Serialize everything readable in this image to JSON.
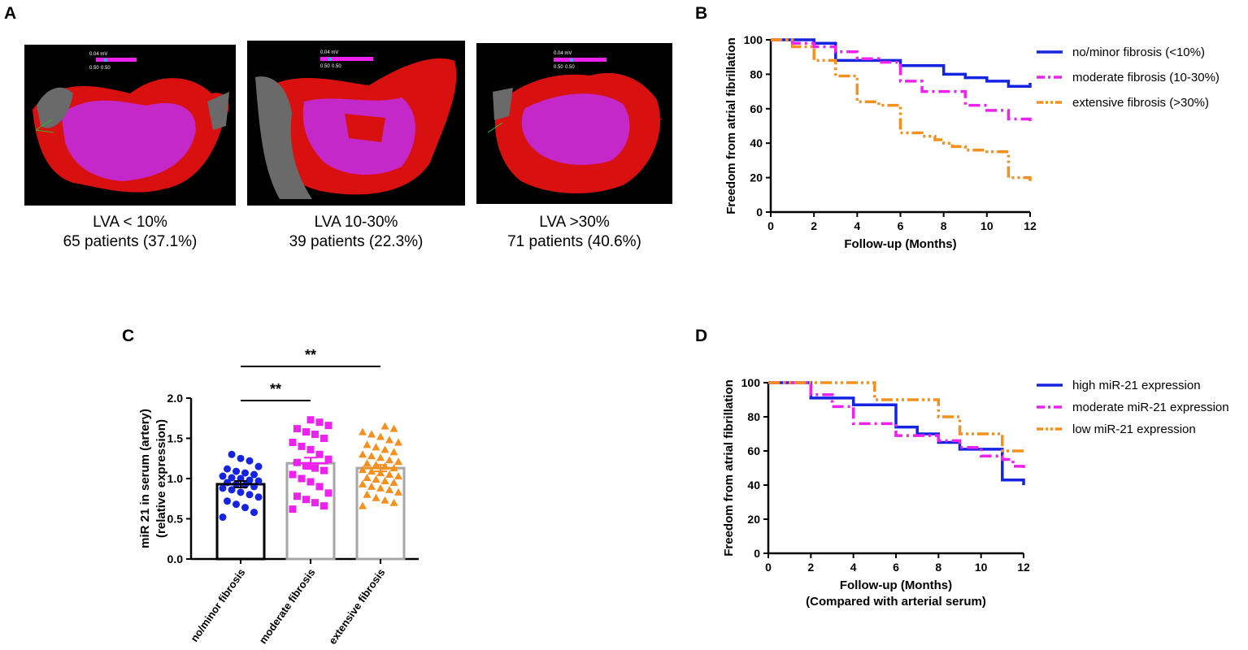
{
  "panels": {
    "a": "A",
    "b": "B",
    "c": "C",
    "d": "D"
  },
  "maps": [
    {
      "scale_value": "0.04 mV",
      "scale_min": "0.50",
      "scale_max": "0.50",
      "cap1": "LVA < 10%",
      "cap2": "65 patients (37.1%)"
    },
    {
      "scale_value": "0.04 mV",
      "scale_min": "0.50",
      "scale_max": "0.50",
      "cap1": "LVA 10-30%",
      "cap2": "39 patients (22.3%)"
    },
    {
      "scale_value": "0.04 mV",
      "scale_min": "0.50",
      "scale_max": "0.50",
      "cap1": "LVA >30%",
      "cap2": "71 patients (40.6%)"
    }
  ],
  "colors": {
    "blue": "#1424e0",
    "magenta": "#ee22ee",
    "orange": "#f5901e",
    "map_red": "#d81010",
    "map_magenta": "#c428c8",
    "map_grey": "#6a6a6a"
  },
  "chart_data": [
    {
      "id": "B",
      "type": "line",
      "xlabel": "Follow-up (Months)",
      "ylabel": "Freedom from atrial fibrillation",
      "xlim": [
        0,
        12
      ],
      "ylim": [
        0,
        100
      ],
      "xticks": [
        0,
        2,
        4,
        6,
        8,
        10,
        12
      ],
      "yticks": [
        0,
        20,
        40,
        60,
        80,
        100
      ],
      "legend_position": "right",
      "series": [
        {
          "name": "no/minor fibrosis (<10%)",
          "color": "#1424e0",
          "style": "solid",
          "points": [
            [
              0,
              100
            ],
            [
              2,
              100
            ],
            [
              2,
              98
            ],
            [
              3,
              98
            ],
            [
              3,
              88
            ],
            [
              6,
              88
            ],
            [
              6,
              85
            ],
            [
              8,
              85
            ],
            [
              8,
              80
            ],
            [
              9,
              80
            ],
            [
              9,
              78
            ],
            [
              10,
              78
            ],
            [
              10,
              76
            ],
            [
              11,
              76
            ],
            [
              11,
              73
            ],
            [
              12,
              73
            ],
            [
              12,
              75
            ]
          ]
        },
        {
          "name": "moderate fibrosis (10-30%)",
          "color": "#ee22ee",
          "style": "dashdot",
          "points": [
            [
              0,
              100
            ],
            [
              1,
              100
            ],
            [
              1,
              98
            ],
            [
              2,
              98
            ],
            [
              2,
              96
            ],
            [
              3,
              96
            ],
            [
              3,
              93
            ],
            [
              4,
              93
            ],
            [
              4,
              89
            ],
            [
              5,
              89
            ],
            [
              5,
              87
            ],
            [
              6,
              87
            ],
            [
              6,
              76
            ],
            [
              7,
              76
            ],
            [
              7,
              70
            ],
            [
              9,
              70
            ],
            [
              9,
              62
            ],
            [
              10,
              62
            ],
            [
              10,
              59
            ],
            [
              11,
              59
            ],
            [
              11,
              54
            ],
            [
              12,
              54
            ],
            [
              12,
              52
            ]
          ]
        },
        {
          "name": "extensive fibrosis (>30%)",
          "color": "#f5901e",
          "style": "dashdotdot",
          "points": [
            [
              0,
              100
            ],
            [
              1,
              100
            ],
            [
              1,
              96
            ],
            [
              2,
              96
            ],
            [
              2,
              88
            ],
            [
              3,
              88
            ],
            [
              3,
              79
            ],
            [
              4,
              79
            ],
            [
              4,
              64
            ],
            [
              5,
              64
            ],
            [
              5,
              62
            ],
            [
              6,
              62
            ],
            [
              6,
              46
            ],
            [
              7,
              46
            ],
            [
              7,
              44
            ],
            [
              7.6,
              44
            ],
            [
              7.6,
              42
            ],
            [
              8,
              42
            ],
            [
              8,
              40
            ],
            [
              8.4,
              40
            ],
            [
              8.4,
              38
            ],
            [
              9,
              38
            ],
            [
              9,
              36
            ],
            [
              10,
              36
            ],
            [
              10,
              35
            ],
            [
              11,
              35
            ],
            [
              11,
              20
            ],
            [
              12,
              20
            ],
            [
              12,
              18
            ]
          ]
        }
      ]
    },
    {
      "id": "C",
      "type": "bar",
      "ylabel": "miR 21 in serum (artery)",
      "ylabel2": "(relative expression)",
      "categories": [
        "no/minor fibrosis",
        "moderate fibrosis",
        "extensive fibrosis"
      ],
      "ylim": [
        0,
        2.0
      ],
      "yticks": [
        "0.0",
        "0.5",
        "1.0",
        "1.5",
        "2.0"
      ],
      "means": [
        0.93,
        1.19,
        1.13
      ],
      "sem": [
        0.04,
        0.07,
        0.04
      ],
      "bar_colors": [
        "#000000",
        "#a6a6a6",
        "#a6a6a6"
      ],
      "marker_colors": [
        "#1424e0",
        "#ee22ee",
        "#f5901e"
      ],
      "markers": [
        "circle",
        "square",
        "triangle"
      ],
      "points": [
        [
          0.52,
          0.58,
          0.64,
          0.68,
          0.72,
          0.77,
          0.8,
          0.83,
          0.86,
          0.88,
          0.9,
          0.92,
          0.93,
          0.95,
          0.97,
          0.98,
          1.0,
          1.01,
          1.03,
          1.05,
          1.07,
          1.09,
          1.12,
          1.15,
          1.22,
          1.25,
          1.3
        ],
        [
          0.62,
          0.66,
          0.7,
          0.74,
          0.78,
          0.82,
          0.9,
          0.96,
          1.0,
          1.05,
          1.1,
          1.13,
          1.16,
          1.2,
          1.24,
          1.3,
          1.36,
          1.4,
          1.45,
          1.5,
          1.55,
          1.58,
          1.62,
          1.66,
          1.7,
          1.73
        ],
        [
          0.66,
          0.7,
          0.73,
          0.76,
          0.8,
          0.83,
          0.86,
          0.88,
          0.9,
          0.93,
          0.95,
          0.97,
          0.99,
          1.01,
          1.03,
          1.05,
          1.07,
          1.09,
          1.11,
          1.13,
          1.15,
          1.17,
          1.19,
          1.21,
          1.23,
          1.26,
          1.28,
          1.3,
          1.33,
          1.36,
          1.39,
          1.42,
          1.45,
          1.48,
          1.52,
          1.55,
          1.58,
          1.62,
          1.65
        ]
      ],
      "significance": [
        {
          "from": 0,
          "to": 1,
          "label": "**"
        },
        {
          "from": 0,
          "to": 2,
          "label": "**"
        }
      ]
    },
    {
      "id": "D",
      "type": "line",
      "xlabel": "Follow-up (Months)",
      "xlabel2": "(Compared with arterial serum)",
      "ylabel": "Freedom from atrial fibrillation",
      "xlim": [
        0,
        12
      ],
      "ylim": [
        0,
        100
      ],
      "xticks": [
        0,
        2,
        4,
        6,
        8,
        10,
        12
      ],
      "yticks": [
        0,
        20,
        40,
        60,
        80,
        100
      ],
      "legend_position": "right",
      "series": [
        {
          "name": "high miR-21 expression",
          "color": "#1424e0",
          "style": "solid",
          "points": [
            [
              0,
              100
            ],
            [
              2,
              100
            ],
            [
              2,
              91
            ],
            [
              4,
              91
            ],
            [
              4,
              87
            ],
            [
              6,
              87
            ],
            [
              6,
              74
            ],
            [
              7,
              74
            ],
            [
              7,
              70
            ],
            [
              8,
              70
            ],
            [
              8,
              65
            ],
            [
              9,
              65
            ],
            [
              9,
              61
            ],
            [
              11,
              61
            ],
            [
              11,
              43
            ],
            [
              12,
              43
            ],
            [
              12,
              40
            ]
          ]
        },
        {
          "name": "moderate miR-21 expression",
          "color": "#ee22ee",
          "style": "dashdot",
          "points": [
            [
              0,
              100
            ],
            [
              2,
              100
            ],
            [
              2,
              93
            ],
            [
              3,
              93
            ],
            [
              3,
              86
            ],
            [
              4,
              86
            ],
            [
              4,
              76
            ],
            [
              6,
              76
            ],
            [
              6,
              69
            ],
            [
              8,
              69
            ],
            [
              8,
              66
            ],
            [
              9,
              66
            ],
            [
              9,
              62
            ],
            [
              10,
              62
            ],
            [
              10,
              57
            ],
            [
              11,
              57
            ],
            [
              11,
              55
            ],
            [
              11.5,
              55
            ],
            [
              11.5,
              51
            ],
            [
              12,
              51
            ],
            [
              12,
              49
            ]
          ]
        },
        {
          "name": "low miR-21 expression",
          "color": "#f5901e",
          "style": "dashdotdot",
          "points": [
            [
              0,
              100
            ],
            [
              4,
              100
            ],
            [
              4,
              100
            ],
            [
              5,
              100
            ],
            [
              5,
              90
            ],
            [
              8,
              90
            ],
            [
              8,
              80
            ],
            [
              9,
              80
            ],
            [
              9,
              70
            ],
            [
              11,
              70
            ],
            [
              11,
              60
            ],
            [
              12,
              60
            ],
            [
              12,
              62
            ]
          ]
        }
      ]
    }
  ]
}
